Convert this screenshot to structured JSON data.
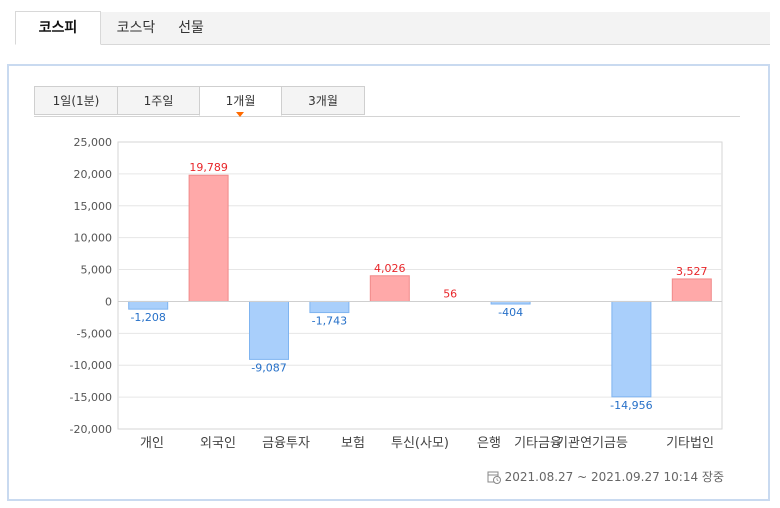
{
  "market_tabs": [
    {
      "label": "코스피",
      "active": true
    },
    {
      "label": "코스닥",
      "active": false
    },
    {
      "label": "선물",
      "active": false
    }
  ],
  "period_tabs": [
    {
      "label": "1일(1분)",
      "active": false
    },
    {
      "label": "1주일",
      "active": false
    },
    {
      "label": "1개월",
      "active": true
    },
    {
      "label": "3개월",
      "active": false
    }
  ],
  "date_range": "2021.08.27 ~ 2021.09.27 10:14 장중",
  "colors": {
    "positive_fill": "#ffa9a9",
    "positive_label": "#e8262a",
    "negative_fill": "#a9cffb",
    "negative_label": "#2670c8"
  },
  "chart_data": {
    "type": "bar",
    "categories": [
      "개인",
      "외국인",
      "금융투자",
      "보험",
      "투신(사모)",
      "은행",
      "기타금융",
      "기관",
      "연기금등",
      "기타법인"
    ],
    "values": [
      -1208,
      19789,
      -9087,
      -1743,
      4026,
      56,
      -404,
      null,
      -14956,
      3527
    ],
    "data_labels": [
      "-1,208",
      "19,789",
      "-9,087",
      "-1,743",
      "4,026",
      "56",
      "-404",
      "",
      "-14,956",
      "3,527"
    ],
    "ylim": [
      -20000,
      25000
    ],
    "yticks": [
      25000,
      20000,
      15000,
      10000,
      5000,
      0,
      -5000,
      -10000,
      -15000,
      -20000
    ],
    "ytick_labels": [
      "25,000",
      "20,000",
      "15,000",
      "10,000",
      "5,000",
      "0",
      "-5,000",
      "-10,000",
      "-15,000",
      "-20,000"
    ],
    "grid": true
  }
}
